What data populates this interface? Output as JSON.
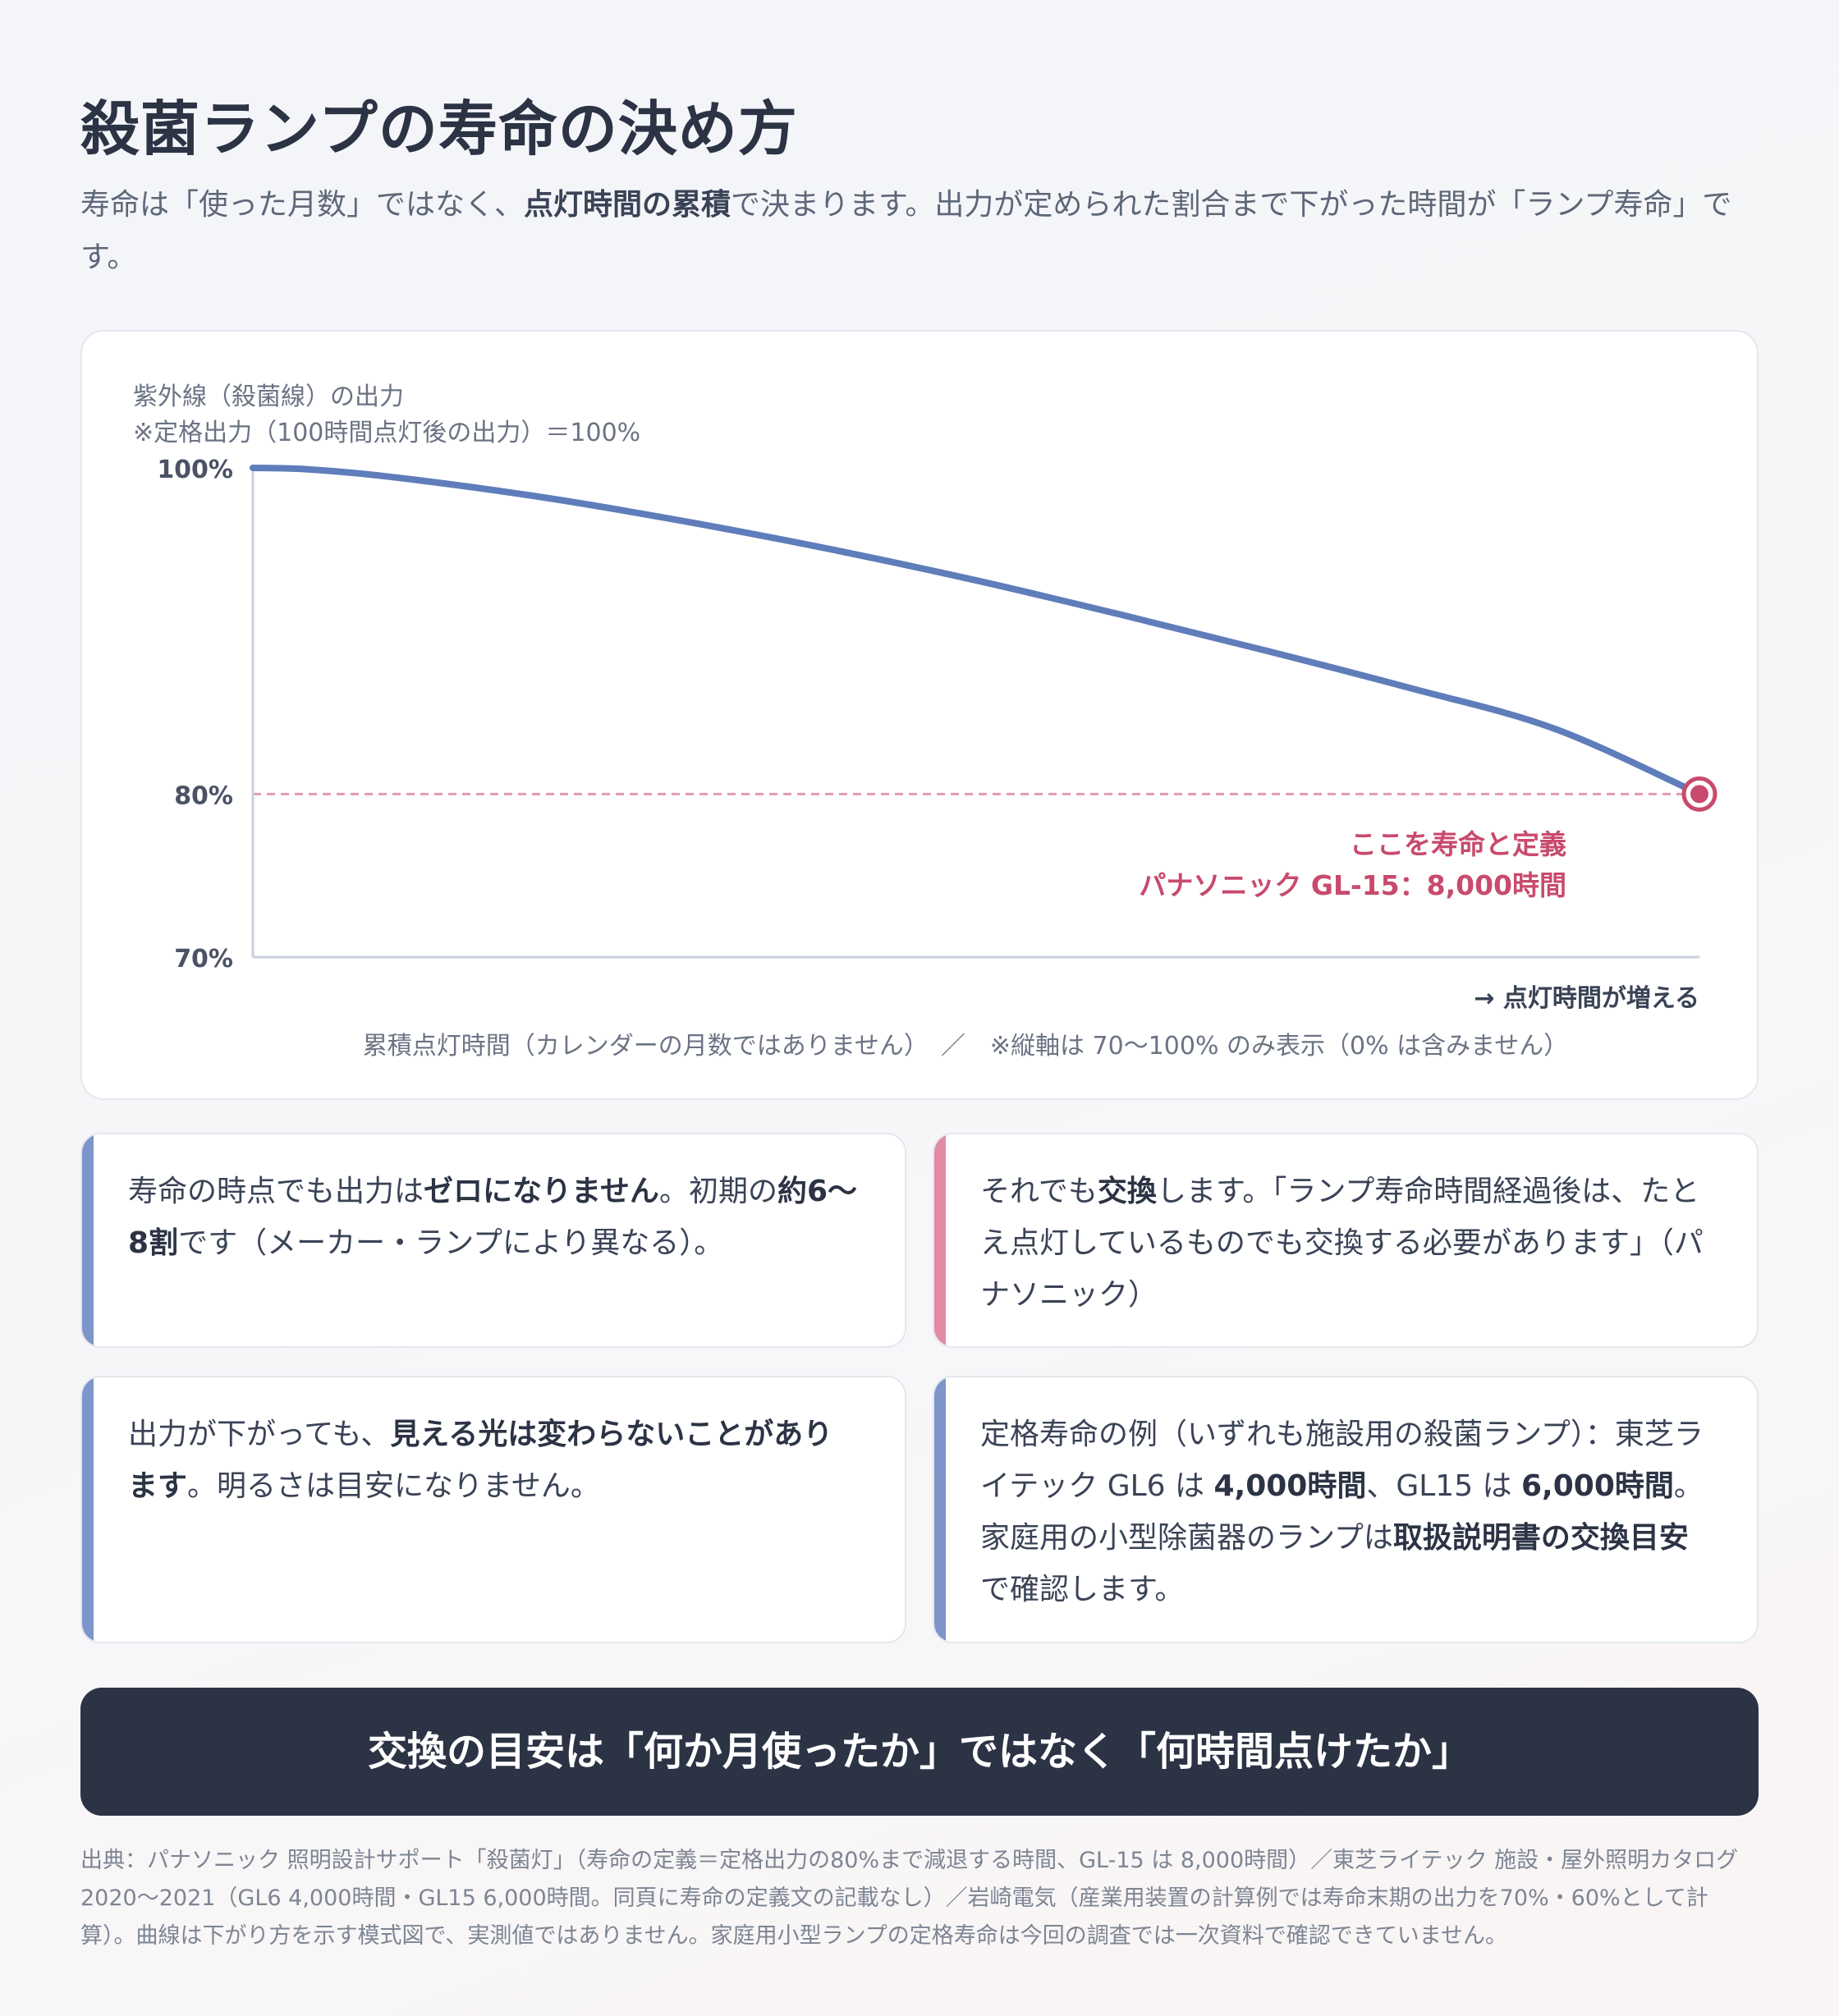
{
  "header": {
    "title": "殺菌ランプの寿命の決め方",
    "lead_1": "寿命は「使った月数」ではなく、",
    "lead_bold": "点灯時間の累積",
    "lead_2": "で決まります。出力が定められた割合まで下がった時間が「ランプ寿命」です。"
  },
  "chart_data": {
    "type": "line",
    "ylabel": "紫外線（殺菌線）の出力",
    "ylabel_note": "※定格出力（100時間点灯後の出力）＝100%",
    "ylim": [
      70,
      100
    ],
    "yticks": [
      {
        "value": 100,
        "label": "100%"
      },
      {
        "value": 80,
        "label": "80%"
      },
      {
        "value": 70,
        "label": "70%"
      }
    ],
    "xlim": [
      0,
      1
    ],
    "x_arrow_label": "→ 点灯時間が増える",
    "xlabel": "累積点灯時間（カレンダーの月数ではありません）　／　※縦軸は 70〜100% のみ表示（0% は含みません）",
    "series": [
      {
        "values": [
          [
            0.0,
            100
          ],
          [
            0.04,
            99.9
          ],
          [
            0.1,
            99.4
          ],
          [
            0.2,
            98.2
          ],
          [
            0.3,
            96.7
          ],
          [
            0.4,
            95.0
          ],
          [
            0.5,
            93.1
          ],
          [
            0.6,
            91.0
          ],
          [
            0.7,
            88.8
          ],
          [
            0.8,
            86.5
          ],
          [
            0.9,
            84.0
          ],
          [
            1.0,
            80.0
          ]
        ]
      }
    ],
    "threshold": {
      "value": 80
    },
    "endpoint": {
      "x": 1.0,
      "y": 80
    },
    "annotation": [
      "ここを寿命と定義",
      "パナソニック GL-15：8,000時間"
    ],
    "colors": {
      "line": "#5f7dba",
      "threshold": "#e39ab0",
      "marker": "#c84a6c",
      "axis": "#c9d0dc"
    }
  },
  "cards": [
    {
      "segments": [
        [
          "寿命の時点でも出力は",
          false
        ],
        [
          "ゼロになりません",
          true
        ],
        [
          "。初期の",
          false
        ],
        [
          "約6〜8割",
          true
        ],
        [
          "です（メーカー・ランプにより異なる）。",
          false
        ]
      ],
      "accent": "#7d95c8"
    },
    {
      "segments": [
        [
          "それでも",
          false
        ],
        [
          "交換",
          true
        ],
        [
          "します。「ランプ寿命時間経過後は、たとえ点灯しているものでも交換する必要があります」（パナソニック）",
          false
        ]
      ],
      "accent": "#e38aa4"
    },
    {
      "segments": [
        [
          "出力が下がっても、",
          false
        ],
        [
          "見える光は変わらないことがあります",
          true
        ],
        [
          "。明るさは目安になりません。",
          false
        ]
      ],
      "accent": "#7d95c8"
    },
    {
      "segments": [
        [
          "定格寿命の例（いずれも施設用の殺菌ランプ）：東芝ライテック GL6 は ",
          false
        ],
        [
          "4,000時間",
          true
        ],
        [
          "、GL15 は ",
          false
        ],
        [
          "6,000時間",
          true
        ],
        [
          "。家庭用の小型除菌器のランプは",
          false
        ],
        [
          "取扱説明書の交換目安",
          true
        ],
        [
          "で確認します。",
          false
        ]
      ],
      "accent": "#7d95c8"
    }
  ],
  "banner": "交換の目安は「何か月使ったか」ではなく「何時間点けたか」",
  "source": "出典：パナソニック 照明設計サポート「殺菌灯」（寿命の定義＝定格出力の80%まで減退する時間、GL-15 は 8,000時間）／東芝ライテック 施設・屋外照明カタログ2020〜2021（GL6 4,000時間・GL15 6,000時間。同頁に寿命の定義文の記載なし）／岩崎電気（産業用装置の計算例では寿命末期の出力を70%・60%として計算）。曲線は下がり方を示す模式図で、実測値ではありません。家庭用小型ランプの定格寿命は今回の調査では一次資料で確認できていません。"
}
